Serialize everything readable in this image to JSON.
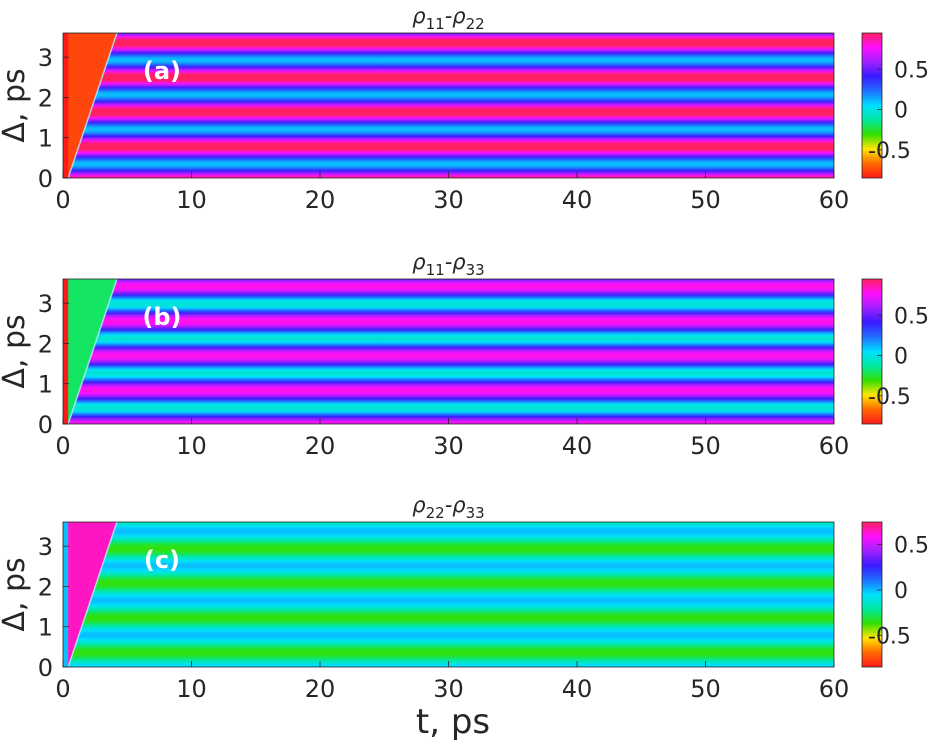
{
  "figure": {
    "xlabel": "t, ps"
  },
  "chart_data": [
    {
      "type": "heatmap",
      "panel_label": "(a)",
      "title": "ρ11-ρ22",
      "title_main": "ρ",
      "title_sub1": "11",
      "title_mid": "-ρ",
      "title_sub2": "22",
      "ylabel": "Δ, ps",
      "xlabel": "",
      "xlim": [
        0,
        60
      ],
      "ylim": [
        0,
        3.6
      ],
      "xticks": [
        0,
        10,
        20,
        30,
        40,
        50,
        60
      ],
      "yticks": [
        0,
        1,
        2,
        3
      ],
      "colorbar": {
        "clim": [
          -0.85,
          0.95
        ],
        "ticks": [
          -0.5,
          0,
          0.5
        ],
        "tick_labels": [
          "-0.5",
          "0",
          "0.5"
        ]
      },
      "colormap": [
        "#ff1a1a",
        "#ff6a00",
        "#ffe600",
        "#33e000",
        "#00e8a0",
        "#00e0ff",
        "#1f6fff",
        "#3a1aff",
        "#a020ff",
        "#ff10ff",
        "#ff2060"
      ],
      "triangle_region": {
        "x_start": 0.4,
        "x_end": 4.2,
        "value": -0.75,
        "strip_value": -0.85,
        "strip_width": 0.4
      },
      "stripes": {
        "base": 0.55,
        "amp": 0.45,
        "period": 0.86,
        "phase": 0.6,
        "drift": 0.002
      }
    },
    {
      "type": "heatmap",
      "panel_label": "(b)",
      "title": "ρ11-ρ33",
      "title_main": "ρ",
      "title_sub1": "11",
      "title_mid": "-ρ",
      "title_sub2": "33",
      "ylabel": "Δ, ps",
      "xlabel": "",
      "xlim": [
        0,
        60
      ],
      "ylim": [
        0,
        3.6
      ],
      "xticks": [
        0,
        10,
        20,
        30,
        40,
        50,
        60
      ],
      "yticks": [
        0,
        1,
        2,
        3
      ],
      "colorbar": {
        "clim": [
          -0.85,
          0.95
        ],
        "ticks": [
          -0.5,
          0,
          0.5
        ],
        "tick_labels": [
          "-0.5",
          "0",
          "0.5"
        ]
      },
      "colormap": [
        "#ff1a1a",
        "#ff6a00",
        "#ffe600",
        "#33e000",
        "#00e8a0",
        "#00e0ff",
        "#1f6fff",
        "#3a1aff",
        "#a020ff",
        "#ff10ff",
        "#ff2060"
      ],
      "triangle_region": {
        "x_start": 0.4,
        "x_end": 4.2,
        "value": -0.2,
        "strip_value": -0.85,
        "strip_width": 0.4
      },
      "stripes": {
        "base": 0.38,
        "amp": 0.42,
        "period": 0.86,
        "phase": 0.2,
        "drift": 0.0
      }
    },
    {
      "type": "heatmap",
      "panel_label": "(c)",
      "title": "ρ22-ρ33",
      "title_main": "ρ",
      "title_sub1": "22",
      "title_mid": "-ρ",
      "title_sub2": "33",
      "ylabel": "Δ, ps",
      "xlabel": "t, ps",
      "xlim": [
        0,
        60
      ],
      "ylim": [
        0,
        3.6
      ],
      "xticks": [
        0,
        10,
        20,
        30,
        40,
        50,
        60
      ],
      "yticks": [
        0,
        1,
        2,
        3
      ],
      "colorbar": {
        "clim": [
          -0.85,
          0.75
        ],
        "ticks": [
          -0.5,
          0,
          0.5
        ],
        "tick_labels": [
          "-0.5",
          "0",
          "0.5"
        ]
      },
      "colormap": [
        "#ff1a1a",
        "#ff6a00",
        "#ffe600",
        "#33e000",
        "#00e8a0",
        "#00e0ff",
        "#1f6fff",
        "#3a1aff",
        "#a020ff",
        "#ff10ff",
        "#ff2060"
      ],
      "triangle_region": {
        "x_start": 0.4,
        "x_end": 4.2,
        "value": 0.65,
        "strip_value": 0.0,
        "strip_width": 0.4
      },
      "stripes": {
        "base": -0.18,
        "amp": 0.18,
        "period": 0.86,
        "phase": 0.5,
        "drift": 0.0
      }
    }
  ]
}
